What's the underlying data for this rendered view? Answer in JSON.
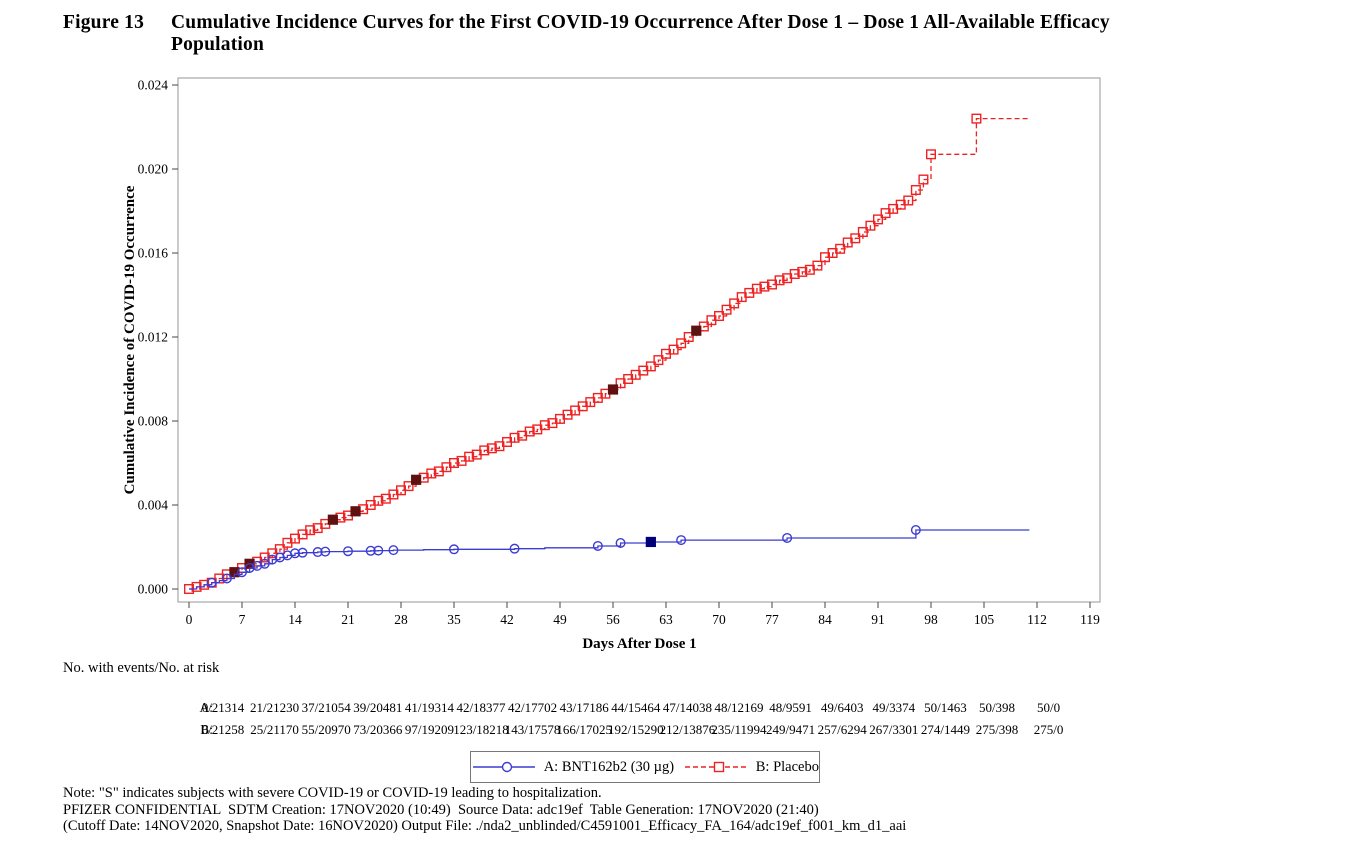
{
  "figure": {
    "label": "Figure 13",
    "title_line1": "Cumulative Incidence Curves for the First COVID-19 Occurrence After Dose 1 – Dose 1 All-Available Efficacy",
    "title_line2": "Population"
  },
  "chart_data": {
    "type": "line",
    "subtype": "step-cumulative-incidence",
    "xlabel": "Days After Dose 1",
    "ylabel": "Cumulative Incidence of COVID-19 Occurrence",
    "xlim": [
      0,
      119
    ],
    "ylim": [
      0,
      0.024
    ],
    "xticks": [
      0,
      7,
      14,
      21,
      28,
      35,
      42,
      49,
      56,
      63,
      70,
      77,
      84,
      91,
      98,
      105,
      112,
      119
    ],
    "yticks": [
      0.0,
      0.004,
      0.008,
      0.012,
      0.016,
      0.02,
      0.024
    ],
    "grid": false,
    "frame_color": "#a8a8a8",
    "series": [
      {
        "name": "B: Placebo",
        "group": "B",
        "color": "#ee2222",
        "severe_color": "#5f1010",
        "marker": "square",
        "line_style": "dashed",
        "end_day": 111,
        "points": [
          [
            0,
            0.0
          ],
          [
            1,
            0.0001
          ],
          [
            2,
            0.0002
          ],
          [
            3,
            0.0003
          ],
          [
            4,
            0.0005
          ],
          [
            5,
            0.0007
          ],
          [
            6,
            0.0008
          ],
          [
            7,
            0.001
          ],
          [
            8,
            0.0012
          ],
          [
            9,
            0.0013
          ],
          [
            10,
            0.0015
          ],
          [
            11,
            0.0017
          ],
          [
            12,
            0.0019
          ],
          [
            13,
            0.0022
          ],
          [
            14,
            0.0024
          ],
          [
            15,
            0.0026
          ],
          [
            16,
            0.0028
          ],
          [
            17,
            0.0029
          ],
          [
            18,
            0.0031
          ],
          [
            19,
            0.0033
          ],
          [
            20,
            0.0034
          ],
          [
            21,
            0.0035
          ],
          [
            22,
            0.0037
          ],
          [
            23,
            0.0038
          ],
          [
            24,
            0.004
          ],
          [
            25,
            0.0042
          ],
          [
            26,
            0.0043
          ],
          [
            27,
            0.0045
          ],
          [
            28,
            0.0047
          ],
          [
            29,
            0.0049
          ],
          [
            30,
            0.0052
          ],
          [
            31,
            0.0053
          ],
          [
            32,
            0.0055
          ],
          [
            33,
            0.0056
          ],
          [
            34,
            0.0058
          ],
          [
            35,
            0.006
          ],
          [
            36,
            0.0061
          ],
          [
            37,
            0.0063
          ],
          [
            38,
            0.0064
          ],
          [
            39,
            0.0066
          ],
          [
            40,
            0.0067
          ],
          [
            41,
            0.0068
          ],
          [
            42,
            0.007
          ],
          [
            43,
            0.0072
          ],
          [
            44,
            0.0073
          ],
          [
            45,
            0.0075
          ],
          [
            46,
            0.0076
          ],
          [
            47,
            0.0078
          ],
          [
            48,
            0.0079
          ],
          [
            49,
            0.0081
          ],
          [
            50,
            0.0083
          ],
          [
            51,
            0.0085
          ],
          [
            52,
            0.0087
          ],
          [
            53,
            0.0089
          ],
          [
            54,
            0.0091
          ],
          [
            55,
            0.0093
          ],
          [
            56,
            0.0095
          ],
          [
            57,
            0.0098
          ],
          [
            58,
            0.01
          ],
          [
            59,
            0.0102
          ],
          [
            60,
            0.0104
          ],
          [
            61,
            0.0106
          ],
          [
            62,
            0.0109
          ],
          [
            63,
            0.0112
          ],
          [
            64,
            0.0114
          ],
          [
            65,
            0.0117
          ],
          [
            66,
            0.012
          ],
          [
            67,
            0.0123
          ],
          [
            68,
            0.0125
          ],
          [
            69,
            0.0128
          ],
          [
            70,
            0.013
          ],
          [
            71,
            0.0133
          ],
          [
            72,
            0.0136
          ],
          [
            73,
            0.0139
          ],
          [
            74,
            0.0141
          ],
          [
            75,
            0.0143
          ],
          [
            76,
            0.0144
          ],
          [
            77,
            0.0145
          ],
          [
            78,
            0.0147
          ],
          [
            79,
            0.0148
          ],
          [
            80,
            0.015
          ],
          [
            81,
            0.0151
          ],
          [
            82,
            0.0152
          ],
          [
            83,
            0.0154
          ],
          [
            84,
            0.0158
          ],
          [
            85,
            0.016
          ],
          [
            86,
            0.0162
          ],
          [
            87,
            0.0165
          ],
          [
            88,
            0.0167
          ],
          [
            89,
            0.017
          ],
          [
            90,
            0.0173
          ],
          [
            91,
            0.0176
          ],
          [
            92,
            0.0179
          ],
          [
            93,
            0.0181
          ],
          [
            94,
            0.0183
          ],
          [
            95,
            0.0185
          ],
          [
            96,
            0.019
          ],
          [
            97,
            0.0195
          ],
          [
            98,
            0.0207
          ],
          [
            104,
            0.0224
          ]
        ],
        "marker_days": "all",
        "severe_days": [
          6,
          8,
          19,
          22,
          30,
          56,
          67
        ]
      },
      {
        "name": "A: BNT162b2 (30 µg)",
        "group": "A",
        "color": "#3c3cd2",
        "severe_color": "#000078",
        "marker": "circle",
        "line_style": "solid",
        "end_day": 111,
        "points": [
          [
            0,
            0.0
          ],
          [
            1,
            0.0001
          ],
          [
            2,
            0.0002
          ],
          [
            3,
            0.0003
          ],
          [
            4,
            0.0004
          ],
          [
            5,
            0.0005
          ],
          [
            6,
            0.0007
          ],
          [
            7,
            0.0008
          ],
          [
            8,
            0.001
          ],
          [
            9,
            0.0011
          ],
          [
            10,
            0.0012
          ],
          [
            11,
            0.0014
          ],
          [
            12,
            0.0015
          ],
          [
            13,
            0.0016
          ],
          [
            14,
            0.0017
          ],
          [
            15,
            0.00173
          ],
          [
            17,
            0.00176
          ],
          [
            18,
            0.00178
          ],
          [
            21,
            0.0018
          ],
          [
            24,
            0.00182
          ],
          [
            25,
            0.00183
          ],
          [
            27,
            0.00185
          ],
          [
            31,
            0.00187
          ],
          [
            35,
            0.00189
          ],
          [
            43,
            0.00192
          ],
          [
            47,
            0.00196
          ],
          [
            54,
            0.00205
          ],
          [
            57,
            0.00219
          ],
          [
            61,
            0.00224
          ],
          [
            65,
            0.00233
          ],
          [
            79,
            0.00243
          ],
          [
            96,
            0.00281
          ]
        ],
        "marker_days": [
          3,
          5,
          7,
          8,
          9,
          10,
          11,
          12,
          13,
          14,
          15,
          17,
          18,
          21,
          24,
          25,
          27,
          35,
          43,
          54,
          57,
          65,
          79,
          96
        ],
        "severe_days": [
          61
        ]
      }
    ]
  },
  "risk_table": {
    "heading": "No. with events/No. at risk",
    "rows": [
      {
        "label": "A:",
        "values": [
          "0/21314",
          "21/21230",
          "37/21054",
          "39/20481",
          "41/19314",
          "42/18377",
          "42/17702",
          "43/17186",
          "44/15464",
          "47/14038",
          "48/12169",
          "48/9591",
          "49/6403",
          "49/3374",
          "50/1463",
          "50/398",
          "50/0"
        ]
      },
      {
        "label": "B:",
        "values": [
          "0/21258",
          "25/21170",
          "55/20970",
          "73/20366",
          "97/19209",
          "123/18218",
          "143/17578",
          "166/17025",
          "192/15290",
          "212/13876",
          "235/11994",
          "249/9471",
          "257/6294",
          "267/3301",
          "274/1449",
          "275/398",
          "275/0"
        ]
      }
    ]
  },
  "legend": {
    "items": [
      {
        "label": "A: BNT162b2 (30 µg)",
        "color": "#3c3cd2",
        "marker": "circle",
        "line_style": "solid"
      },
      {
        "label": "B: Placebo",
        "color": "#ee2222",
        "marker": "square",
        "line_style": "dashed"
      }
    ]
  },
  "notes": [
    "Note: \"S\" indicates subjects with severe COVID-19 or COVID-19 leading to hospitalization.",
    "PFIZER CONFIDENTIAL  SDTM Creation: 17NOV2020 (10:49)  Source Data: adc19ef  Table Generation: 17NOV2020 (21:40)",
    "(Cutoff Date: 14NOV2020, Snapshot Date: 16NOV2020) Output File: ./nda2_unblinded/C4591001_Efficacy_FA_164/adc19ef_f001_km_d1_aai"
  ]
}
